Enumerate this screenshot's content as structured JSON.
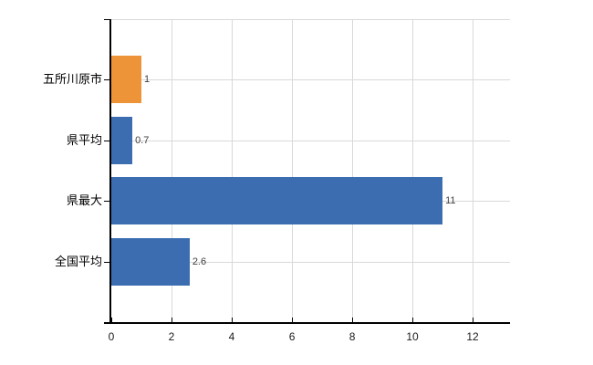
{
  "chart_data": {
    "type": "bar",
    "orientation": "horizontal",
    "title": "",
    "xlabel": "",
    "ylabel": "",
    "categories": [
      "五所川原市",
      "県平均",
      "県最大",
      "全国平均"
    ],
    "values": [
      1,
      0.7,
      11,
      2.6
    ],
    "value_labels": [
      "1",
      "0.7",
      "11",
      "2.6"
    ],
    "bar_colors": [
      "#ED9438",
      "#3B6DB0",
      "#3B6DB0",
      "#3B6DB0"
    ],
    "x_tick_labels": [
      "0",
      "2",
      "4",
      "6",
      "8",
      "10",
      "12"
    ],
    "x_tick_values": [
      0,
      2,
      4,
      6,
      8,
      10,
      12
    ],
    "xlim": [
      0,
      13.24
    ],
    "grid": true,
    "legend": "none",
    "colors": {
      "highlight_bar": "#ED9438",
      "default_bar": "#3B6DB0",
      "grid": "#D9D9D9",
      "axis": "#000000",
      "category_text": "#000000",
      "value_text": "#404040",
      "background": "#FFFFFF"
    }
  }
}
